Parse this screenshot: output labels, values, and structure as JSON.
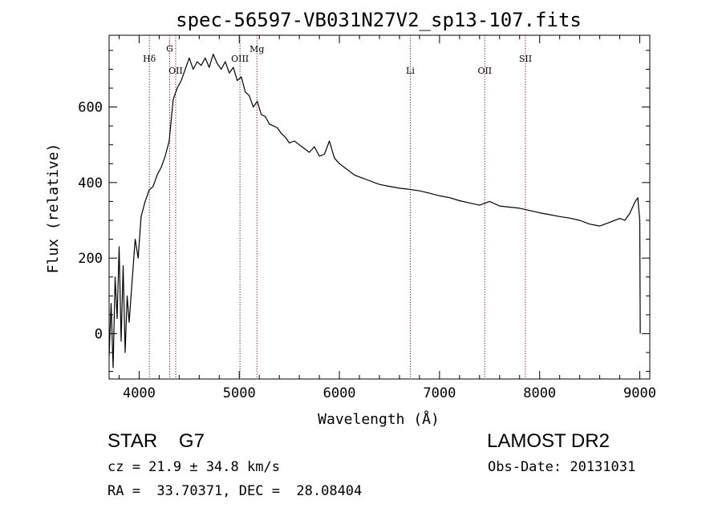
{
  "chart_data": {
    "type": "line",
    "title": "spec-56597-VB031N27V2_sp13-107.fits",
    "xlabel": "Wavelength (Å)",
    "ylabel": "Flux (relative)",
    "xlim": [
      3700,
      9100
    ],
    "ylim": [
      -120,
      790
    ],
    "x_ticks": [
      4000,
      5000,
      6000,
      7000,
      8000,
      9000
    ],
    "y_ticks": [
      0,
      200,
      400,
      600
    ],
    "grid": false,
    "series": [
      {
        "color": "#000000",
        "x": [
          3700,
          3720,
          3740,
          3760,
          3780,
          3800,
          3820,
          3840,
          3860,
          3880,
          3900,
          3930,
          3960,
          3990,
          4020,
          4060,
          4100,
          4140,
          4180,
          4220,
          4260,
          4300,
          4340,
          4380,
          4420,
          4460,
          4500,
          4540,
          4580,
          4620,
          4660,
          4700,
          4740,
          4780,
          4820,
          4860,
          4900,
          4940,
          4980,
          5020,
          5060,
          5100,
          5140,
          5180,
          5220,
          5260,
          5300,
          5340,
          5380,
          5420,
          5460,
          5500,
          5550,
          5600,
          5650,
          5700,
          5750,
          5800,
          5850,
          5900,
          5950,
          6000,
          6050,
          6100,
          6150,
          6200,
          6300,
          6400,
          6500,
          6600,
          6700,
          6800,
          6900,
          7000,
          7100,
          7200,
          7300,
          7400,
          7500,
          7600,
          7700,
          7800,
          7900,
          8000,
          8100,
          8200,
          8300,
          8400,
          8500,
          8600,
          8700,
          8800,
          8850,
          8900,
          8950,
          8980,
          9000,
          9005
        ],
        "y": [
          -60,
          80,
          -90,
          150,
          40,
          230,
          -20,
          180,
          -50,
          100,
          30,
          140,
          250,
          200,
          310,
          350,
          380,
          390,
          420,
          440,
          470,
          510,
          620,
          650,
          670,
          700,
          730,
          700,
          720,
          710,
          730,
          705,
          740,
          715,
          700,
          720,
          690,
          705,
          670,
          680,
          640,
          630,
          600,
          615,
          580,
          575,
          555,
          550,
          545,
          530,
          520,
          505,
          510,
          500,
          490,
          480,
          495,
          470,
          475,
          510,
          465,
          450,
          440,
          430,
          420,
          415,
          405,
          395,
          390,
          385,
          382,
          378,
          372,
          365,
          360,
          352,
          346,
          340,
          350,
          338,
          335,
          332,
          326,
          320,
          315,
          310,
          306,
          300,
          290,
          285,
          295,
          305,
          300,
          318,
          348,
          360,
          300,
          0
        ]
      }
    ],
    "annotations": [
      {
        "label": "Hδ",
        "x": 4102,
        "label_y": 720
      },
      {
        "label": "G",
        "x": 4305,
        "label_y": 747
      },
      {
        "label": "OII",
        "x": 4365,
        "label_y": 688
      },
      {
        "label": "OIII",
        "x": 5007,
        "label_y": 720
      },
      {
        "label": "Mg",
        "x": 5176,
        "label_y": 745
      },
      {
        "label": "Li",
        "x": 6708,
        "label_y": 688
      },
      {
        "label": "OII",
        "x": 7452,
        "label_y": 688
      },
      {
        "label": "SII",
        "x": 7858,
        "label_y": 720
      }
    ],
    "line_color": "#000000",
    "marker_line_color": "#8b0000"
  },
  "info": {
    "object_class": "STAR    G7",
    "survey_release": "LAMOST DR2",
    "redshift_text": "cz = 21.9 ± 34.8 km/s",
    "obs_date": "Obs-Date: 20131031",
    "coords_text": "RA =  33.70371, DEC =  28.08404"
  }
}
